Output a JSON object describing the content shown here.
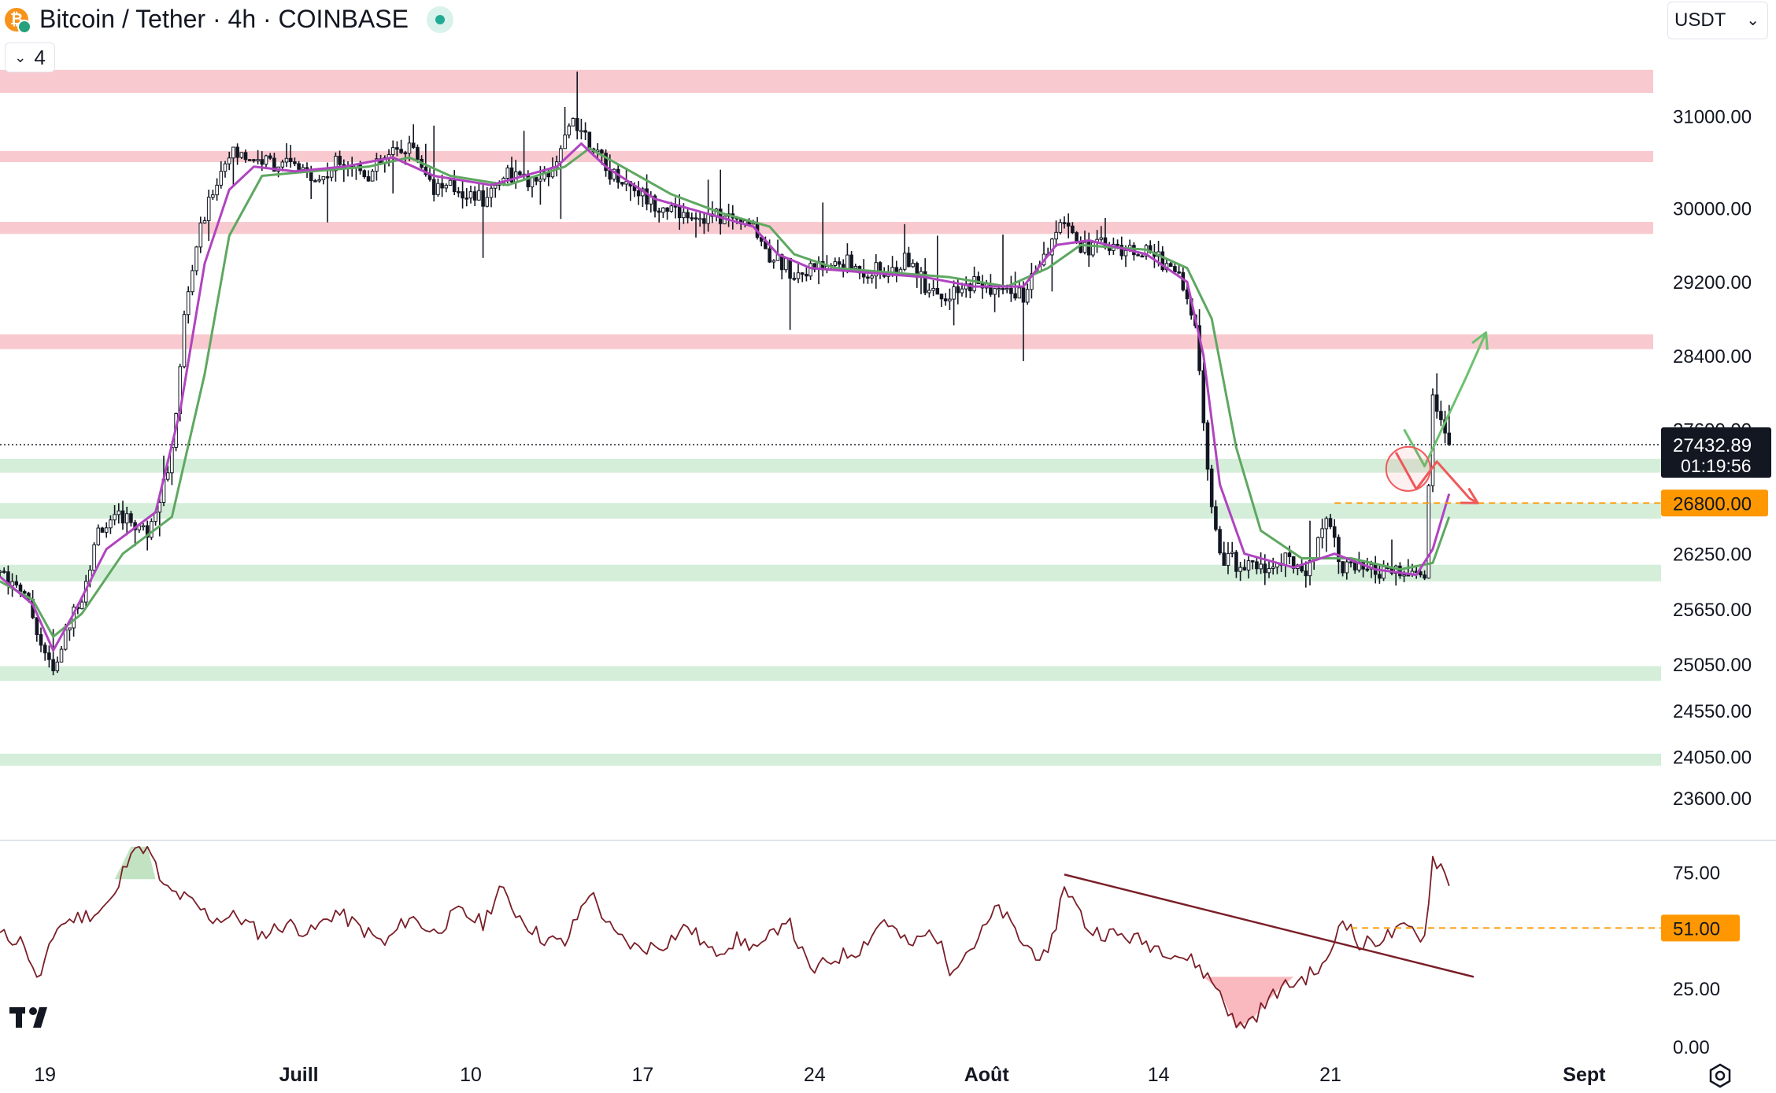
{
  "header": {
    "title": "Bitcoin / Tether · 4h · COINBASE",
    "collapse_count": "4",
    "currency": "USDT"
  },
  "colors": {
    "resistance_zone": "#f8c9cf",
    "support_zone": "#d4eed9",
    "candle": "#131722",
    "ema_fast": "#b044c0",
    "ema_slow": "#5ea861",
    "rsi_line": "#7a1f28",
    "up_arrow": "#6cc16f",
    "down_arrow": "#ef5a5a",
    "tag_orange": "#ff9800",
    "tag_dark": "#131722"
  },
  "chart_data": {
    "type": "candlestick",
    "symbol": "BTCUSDT",
    "interval": "4h",
    "price_axis": {
      "ticks": [
        "31000.00",
        "30000.00",
        "29200.00",
        "28400.00",
        "27600.00",
        "26250.00",
        "25650.00",
        "25050.00",
        "24550.00",
        "24050.00",
        "23600.00"
      ],
      "tick_values": [
        31000,
        30000,
        29200,
        28400,
        27600,
        26250,
        25650,
        25050,
        24550,
        24050,
        23600
      ],
      "ylim": [
        23250,
        31900
      ]
    },
    "last_price": {
      "value": 27432.89,
      "label": "27432.89",
      "countdown": "01:19:56"
    },
    "level_tag": {
      "value": 26800,
      "label": "26800.00"
    },
    "resistance_zones": [
      [
        31250,
        31500
      ],
      [
        30500,
        30620
      ],
      [
        29720,
        29850
      ],
      [
        28470,
        28630
      ]
    ],
    "support_zones": [
      [
        27130,
        27280
      ],
      [
        26630,
        26800
      ],
      [
        25950,
        26130
      ],
      [
        24870,
        25030
      ],
      [
        23950,
        24080
      ]
    ],
    "time_axis": {
      "labels": [
        "19",
        "Juill",
        "10",
        "17",
        "24",
        "Août",
        "14",
        "21",
        "Sept"
      ],
      "bold": [
        false,
        true,
        false,
        false,
        false,
        true,
        false,
        false,
        true
      ],
      "label_bars": [
        11,
        73,
        115,
        157,
        199,
        241,
        283,
        325,
        387
      ],
      "bar_count": 365
    },
    "price_path": [
      [
        0,
        26050
      ],
      [
        6,
        25850
      ],
      [
        10,
        25300
      ],
      [
        13,
        24950
      ],
      [
        17,
        25500
      ],
      [
        20,
        25800
      ],
      [
        24,
        26500
      ],
      [
        30,
        26650
      ],
      [
        36,
        26500
      ],
      [
        42,
        27300
      ],
      [
        45,
        28800
      ],
      [
        48,
        29600
      ],
      [
        52,
        30200
      ],
      [
        56,
        30600
      ],
      [
        60,
        30550
      ],
      [
        66,
        30500
      ],
      [
        72,
        30450
      ],
      [
        78,
        30300
      ],
      [
        84,
        30550
      ],
      [
        90,
        30350
      ],
      [
        96,
        30600
      ],
      [
        100,
        30700
      ],
      [
        106,
        30250
      ],
      [
        112,
        30200
      ],
      [
        118,
        30100
      ],
      [
        124,
        30400
      ],
      [
        130,
        30250
      ],
      [
        136,
        30450
      ],
      [
        140,
        31000
      ],
      [
        144,
        30750
      ],
      [
        148,
        30400
      ],
      [
        154,
        30250
      ],
      [
        160,
        30050
      ],
      [
        166,
        29950
      ],
      [
        172,
        29900
      ],
      [
        178,
        29900
      ],
      [
        184,
        29800
      ],
      [
        188,
        29500
      ],
      [
        194,
        29300
      ],
      [
        200,
        29350
      ],
      [
        206,
        29400
      ],
      [
        212,
        29300
      ],
      [
        218,
        29300
      ],
      [
        222,
        29450
      ],
      [
        226,
        29200
      ],
      [
        232,
        29000
      ],
      [
        238,
        29200
      ],
      [
        244,
        29100
      ],
      [
        250,
        29050
      ],
      [
        256,
        29500
      ],
      [
        260,
        29900
      ],
      [
        264,
        29600
      ],
      [
        270,
        29600
      ],
      [
        276,
        29550
      ],
      [
        282,
        29500
      ],
      [
        288,
        29300
      ],
      [
        292,
        28700
      ],
      [
        295,
        27200
      ],
      [
        298,
        26250
      ],
      [
        302,
        26150
      ],
      [
        308,
        26100
      ],
      [
        314,
        26150
      ],
      [
        320,
        26100
      ],
      [
        324,
        26700
      ],
      [
        328,
        26100
      ],
      [
        334,
        26050
      ],
      [
        340,
        26050
      ],
      [
        344,
        26000
      ],
      [
        348,
        26050
      ],
      [
        350,
        27900
      ],
      [
        352,
        27700
      ],
      [
        354,
        27432.89
      ]
    ],
    "ema_fast_path": [
      [
        0,
        26000
      ],
      [
        8,
        25700
      ],
      [
        13,
        25200
      ],
      [
        18,
        25600
      ],
      [
        26,
        26300
      ],
      [
        38,
        26700
      ],
      [
        44,
        27800
      ],
      [
        50,
        29400
      ],
      [
        56,
        30200
      ],
      [
        62,
        30450
      ],
      [
        72,
        30400
      ],
      [
        84,
        30450
      ],
      [
        96,
        30550
      ],
      [
        106,
        30350
      ],
      [
        120,
        30250
      ],
      [
        136,
        30450
      ],
      [
        142,
        30700
      ],
      [
        148,
        30450
      ],
      [
        160,
        30100
      ],
      [
        172,
        29950
      ],
      [
        184,
        29800
      ],
      [
        190,
        29500
      ],
      [
        198,
        29350
      ],
      [
        212,
        29300
      ],
      [
        226,
        29250
      ],
      [
        238,
        29150
      ],
      [
        250,
        29150
      ],
      [
        258,
        29600
      ],
      [
        266,
        29650
      ],
      [
        280,
        29500
      ],
      [
        290,
        29200
      ],
      [
        294,
        28400
      ],
      [
        298,
        27000
      ],
      [
        304,
        26250
      ],
      [
        316,
        26100
      ],
      [
        326,
        26250
      ],
      [
        336,
        26080
      ],
      [
        346,
        26020
      ],
      [
        350,
        26300
      ],
      [
        354,
        26900
      ]
    ],
    "ema_slow_path": [
      [
        0,
        25950
      ],
      [
        8,
        25750
      ],
      [
        13,
        25350
      ],
      [
        20,
        25600
      ],
      [
        30,
        26250
      ],
      [
        42,
        26650
      ],
      [
        50,
        28200
      ],
      [
        56,
        29700
      ],
      [
        64,
        30350
      ],
      [
        76,
        30400
      ],
      [
        90,
        30450
      ],
      [
        100,
        30550
      ],
      [
        110,
        30350
      ],
      [
        124,
        30250
      ],
      [
        138,
        30450
      ],
      [
        144,
        30650
      ],
      [
        152,
        30450
      ],
      [
        164,
        30150
      ],
      [
        176,
        29950
      ],
      [
        188,
        29800
      ],
      [
        194,
        29500
      ],
      [
        204,
        29350
      ],
      [
        218,
        29300
      ],
      [
        232,
        29250
      ],
      [
        246,
        29150
      ],
      [
        256,
        29350
      ],
      [
        264,
        29600
      ],
      [
        280,
        29550
      ],
      [
        290,
        29350
      ],
      [
        296,
        28800
      ],
      [
        302,
        27400
      ],
      [
        308,
        26500
      ],
      [
        318,
        26200
      ],
      [
        330,
        26200
      ],
      [
        342,
        26080
      ],
      [
        350,
        26150
      ],
      [
        354,
        26650
      ]
    ],
    "rsi": {
      "ticks": [
        "75.00",
        "25.00",
        "0.00"
      ],
      "tick_values": [
        75,
        25,
        0
      ],
      "ylim": [
        0,
        88
      ],
      "level_tag": {
        "value": 51,
        "label": "51.00"
      },
      "path": [
        [
          0,
          48
        ],
        [
          6,
          45
        ],
        [
          8,
          32
        ],
        [
          10,
          30
        ],
        [
          14,
          52
        ],
        [
          18,
          55
        ],
        [
          24,
          58
        ],
        [
          28,
          64
        ],
        [
          32,
          86
        ],
        [
          36,
          86
        ],
        [
          40,
          68
        ],
        [
          46,
          63
        ],
        [
          52,
          55
        ],
        [
          58,
          56
        ],
        [
          64,
          48
        ],
        [
          70,
          53
        ],
        [
          76,
          49
        ],
        [
          82,
          58
        ],
        [
          88,
          51
        ],
        [
          94,
          44
        ],
        [
          100,
          56
        ],
        [
          106,
          49
        ],
        [
          112,
          58
        ],
        [
          118,
          53
        ],
        [
          122,
          68
        ],
        [
          126,
          58
        ],
        [
          132,
          47
        ],
        [
          138,
          44
        ],
        [
          144,
          67
        ],
        [
          150,
          48
        ],
        [
          156,
          42
        ],
        [
          162,
          44
        ],
        [
          168,
          52
        ],
        [
          174,
          40
        ],
        [
          180,
          46
        ],
        [
          186,
          42
        ],
        [
          192,
          56
        ],
        [
          198,
          32
        ],
        [
          204,
          38
        ],
        [
          210,
          42
        ],
        [
          216,
          55
        ],
        [
          222,
          43
        ],
        [
          228,
          50
        ],
        [
          232,
          34
        ],
        [
          238,
          44
        ],
        [
          244,
          60
        ],
        [
          250,
          44
        ],
        [
          256,
          37
        ],
        [
          260,
          70
        ],
        [
          266,
          50
        ],
        [
          276,
          47
        ],
        [
          286,
          41
        ],
        [
          292,
          36
        ],
        [
          298,
          24
        ],
        [
          302,
          8
        ],
        [
          306,
          12
        ],
        [
          312,
          24
        ],
        [
          318,
          29
        ],
        [
          324,
          35
        ],
        [
          328,
          57
        ],
        [
          332,
          43
        ],
        [
          338,
          47
        ],
        [
          344,
          51
        ],
        [
          348,
          47
        ],
        [
          350,
          81
        ],
        [
          352,
          78
        ],
        [
          354,
          69
        ]
      ],
      "trendline": [
        [
          260,
          74
        ],
        [
          360,
          30
        ]
      ]
    },
    "scenarios": {
      "up_path": [
        [
          343,
          27600
        ],
        [
          348,
          27200
        ],
        [
          358,
          28150
        ],
        [
          363,
          28650
        ]
      ],
      "down_path": [
        [
          341,
          27350
        ],
        [
          346,
          26950
        ],
        [
          351,
          27250
        ],
        [
          359,
          26850
        ],
        [
          361,
          26800
        ]
      ],
      "marker_circle": {
        "bar": 344,
        "price": 27170
      },
      "dashed_level": 26800
    }
  }
}
